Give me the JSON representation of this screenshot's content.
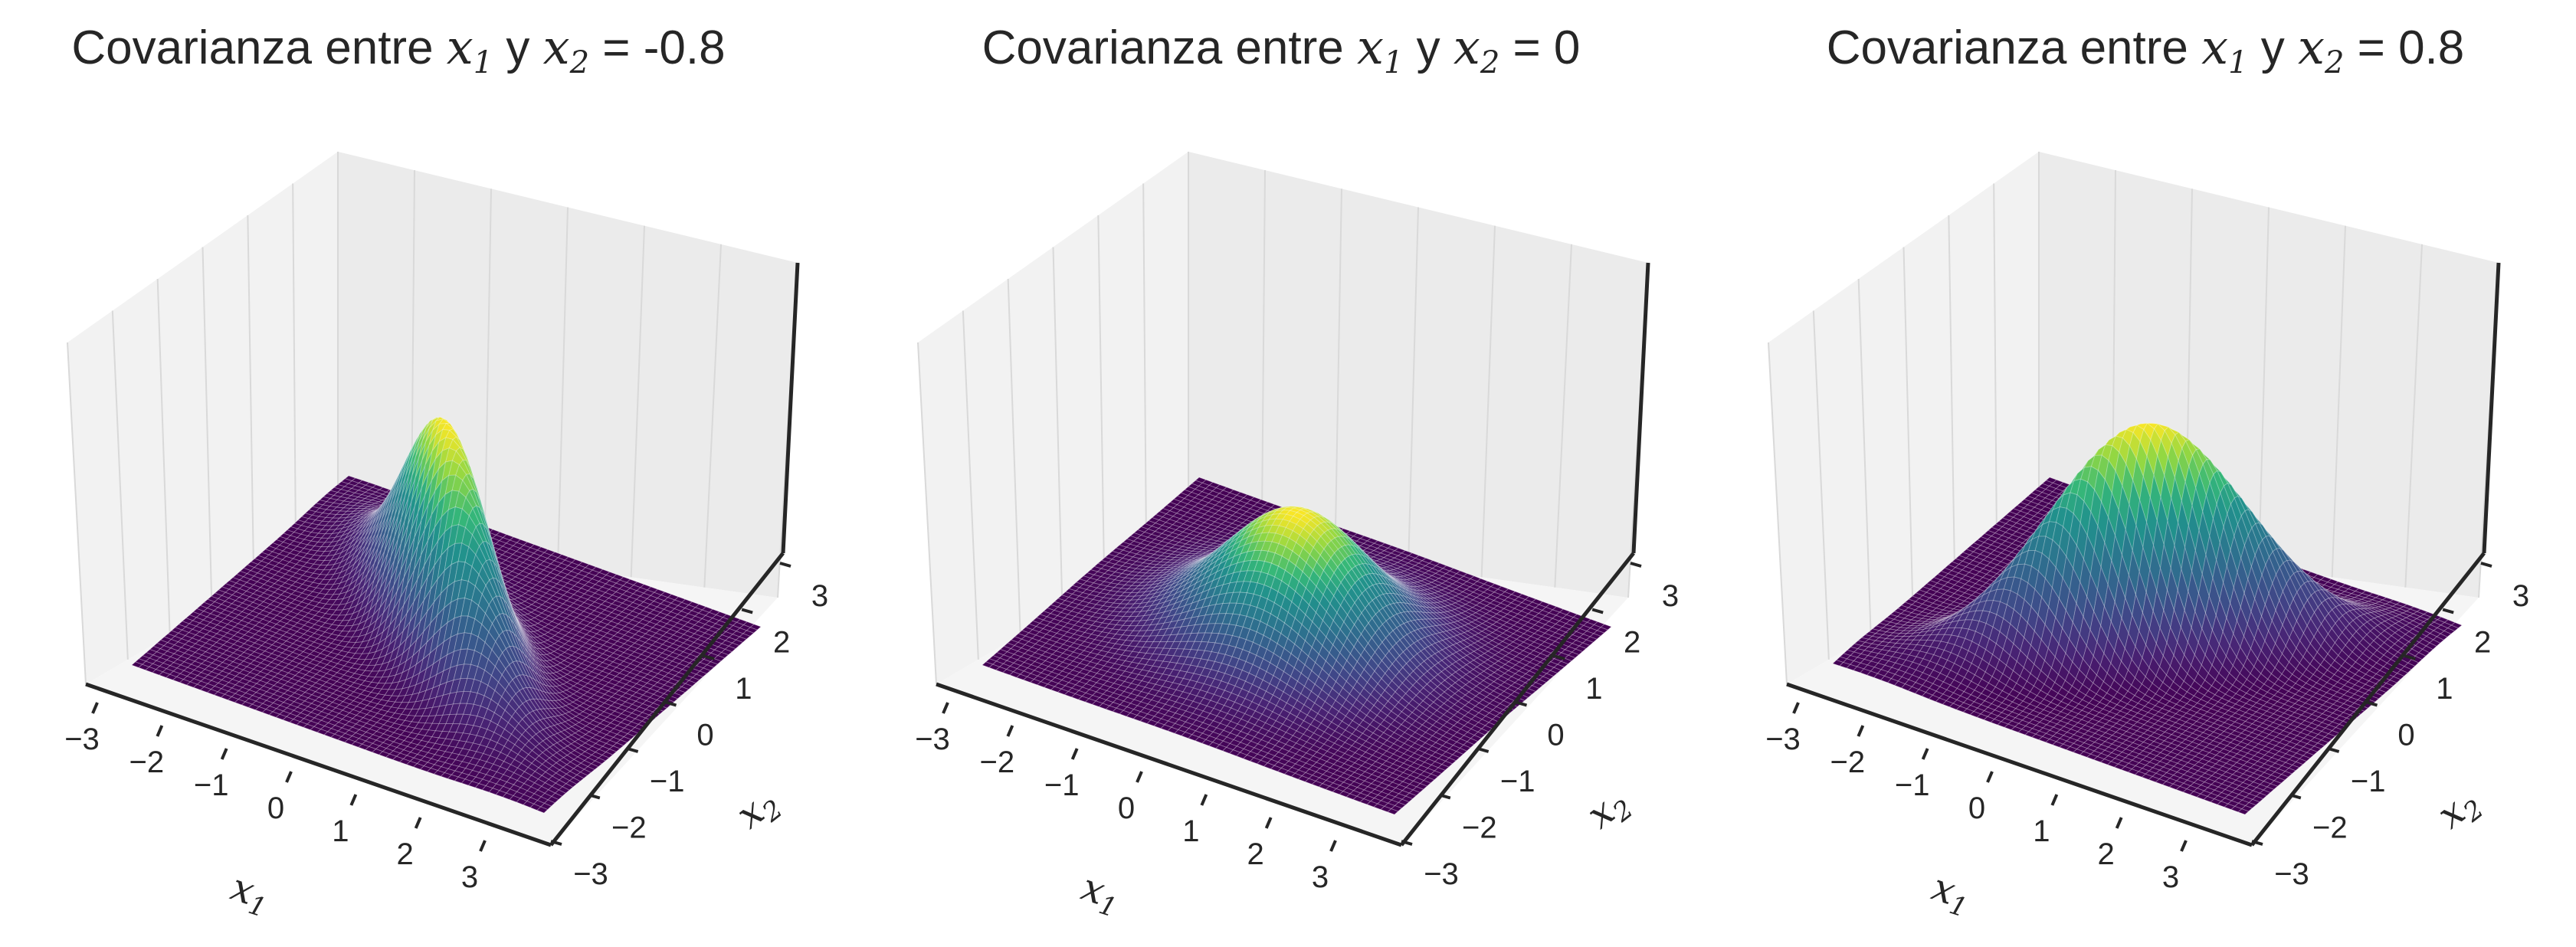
{
  "figure": {
    "panels": [
      {
        "title_prefix": "Covarianza entre ",
        "title_var1": "x",
        "title_sub1": "1",
        "title_conj": " y ",
        "title_var2": "x",
        "title_sub2": "2",
        "title_suffix": " = -0.8",
        "xlabel_var": "x",
        "xlabel_sub": "1",
        "ylabel_var": "x",
        "ylabel_sub": "2"
      },
      {
        "title_prefix": "Covarianza entre ",
        "title_var1": "x",
        "title_sub1": "1",
        "title_conj": " y ",
        "title_var2": "x",
        "title_sub2": "2",
        "title_suffix": " = 0",
        "xlabel_var": "x",
        "xlabel_sub": "1",
        "ylabel_var": "x",
        "ylabel_sub": "2"
      },
      {
        "title_prefix": "Covarianza entre ",
        "title_var1": "x",
        "title_sub1": "1",
        "title_conj": " y ",
        "title_var2": "x",
        "title_sub2": "2",
        "title_suffix": " = 0.8",
        "xlabel_var": "x",
        "xlabel_sub": "1",
        "ylabel_var": "x",
        "ylabel_sub": "2"
      }
    ]
  },
  "chart_data": [
    {
      "type": "surface",
      "surface": "bivariate normal density",
      "covariance": -0.8,
      "x_range": [
        -3,
        3
      ],
      "y_range": [
        -3,
        3
      ],
      "x_ticks": [
        "−3",
        "−2",
        "−1",
        "0",
        "1",
        "2",
        "3"
      ],
      "y_ticks": [
        "−3",
        "−2",
        "−1",
        "0",
        "1",
        "2",
        "3"
      ],
      "colormap": "viridis",
      "colors": {
        "low": "#440154",
        "high": "#fde725"
      },
      "grid": true
    },
    {
      "type": "surface",
      "surface": "bivariate normal density",
      "covariance": 0,
      "x_range": [
        -3,
        3
      ],
      "y_range": [
        -3,
        3
      ],
      "x_ticks": [
        "−3",
        "−2",
        "−1",
        "0",
        "1",
        "2",
        "3"
      ],
      "y_ticks": [
        "−3",
        "−2",
        "−1",
        "0",
        "1",
        "2",
        "3"
      ],
      "colormap": "viridis",
      "colors": {
        "low": "#440154",
        "high": "#fde725"
      },
      "grid": true
    },
    {
      "type": "surface",
      "surface": "bivariate normal density",
      "covariance": 0.8,
      "x_range": [
        -3,
        3
      ],
      "y_range": [
        -3,
        3
      ],
      "x_ticks": [
        "−3",
        "−2",
        "−1",
        "0",
        "1",
        "2",
        "3"
      ],
      "y_ticks": [
        "−3",
        "−2",
        "−1",
        "0",
        "1",
        "2",
        "3"
      ],
      "colormap": "viridis",
      "colors": {
        "low": "#440154",
        "high": "#fde725"
      },
      "grid": true
    }
  ]
}
